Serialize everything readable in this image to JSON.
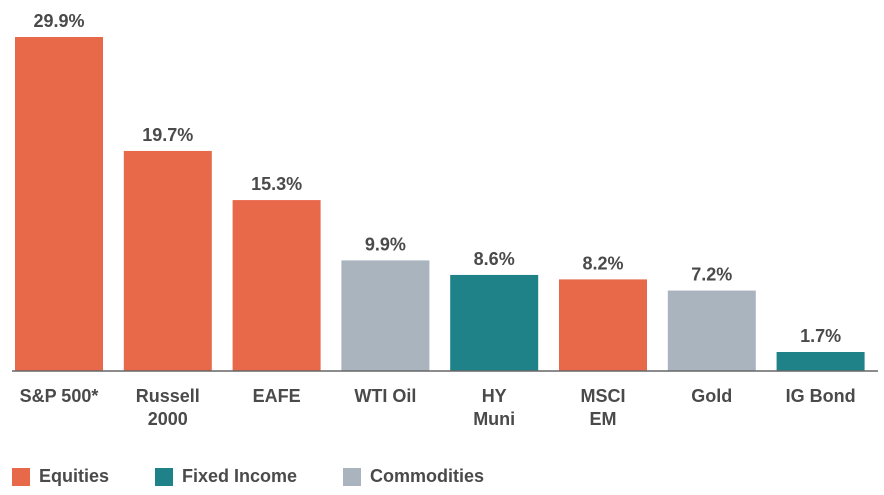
{
  "chart_data": {
    "type": "bar",
    "categories": [
      [
        "S&P 500*"
      ],
      [
        "Russell",
        "2000"
      ],
      [
        "EAFE"
      ],
      [
        "WTI Oil"
      ],
      [
        "HY",
        "Muni"
      ],
      [
        "MSCI",
        "EM"
      ],
      [
        "Gold"
      ],
      [
        "IG Bond"
      ]
    ],
    "values": [
      29.9,
      19.7,
      15.3,
      9.9,
      8.6,
      8.2,
      7.2,
      1.7
    ],
    "value_labels": [
      "29.9%",
      "19.7%",
      "15.3%",
      "9.9%",
      "8.6%",
      "8.2%",
      "7.2%",
      "1.7%"
    ],
    "groups": [
      "Equities",
      "Equities",
      "Equities",
      "Commodities",
      "Fixed Income",
      "Equities",
      "Commodities",
      "Fixed Income"
    ],
    "ylim": [
      0,
      29.9
    ],
    "grid": false,
    "legend_position": "bottom-left"
  },
  "legend": [
    {
      "name": "Equities",
      "color": "#e8684a"
    },
    {
      "name": "Fixed Income",
      "color": "#1e8288"
    },
    {
      "name": "Commodities",
      "color": "#aab4bf"
    }
  ],
  "colors": {
    "axis": "#666666",
    "text": "#4a4a4a"
  }
}
